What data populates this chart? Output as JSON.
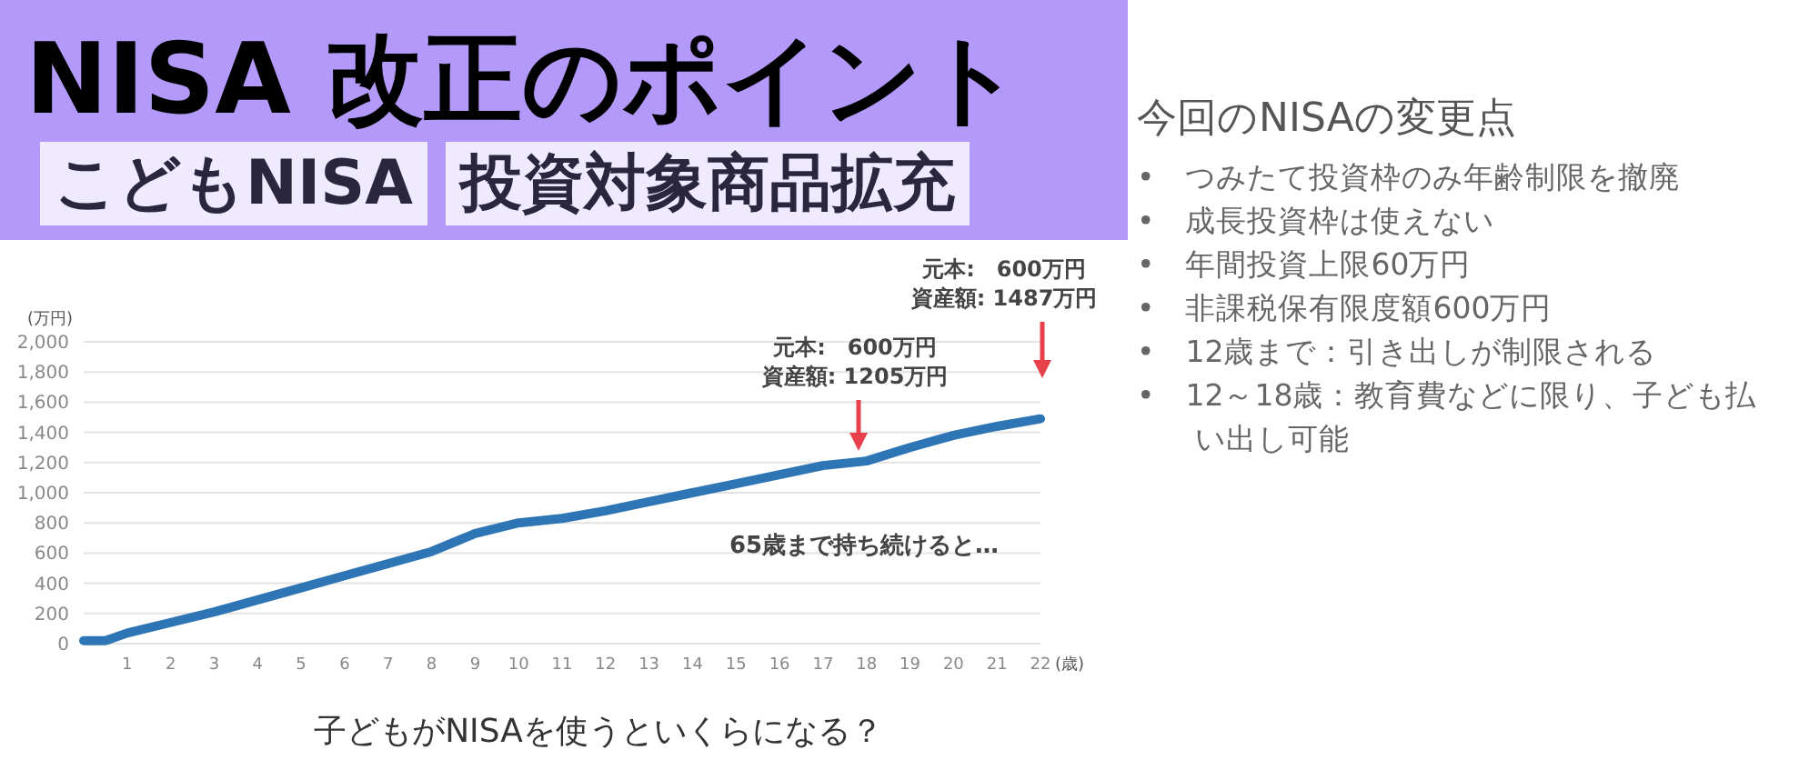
{
  "chart_data": [
    {
      "type": "other",
      "title": "NISA 改正のポイント",
      "annotations": [
        "こどもNISA",
        "投資対象商品拡充"
      ]
    },
    {
      "type": "line",
      "title": "子どもがNISAを使うといくらになる？",
      "xlabel": "(歳)",
      "ylabel": "(万円)",
      "x": [
        0,
        0.5,
        1,
        2,
        3,
        4,
        5,
        6,
        7,
        8,
        9,
        10,
        11,
        12,
        13,
        14,
        15,
        16,
        17,
        18,
        19,
        20,
        21,
        22
      ],
      "series": [
        {
          "color": "#2e75b6",
          "values": [
            20,
            20,
            70,
            140,
            210,
            290,
            370,
            450,
            530,
            610,
            730,
            800,
            830,
            880,
            940,
            1000,
            1060,
            1120,
            1180,
            1210,
            1300,
            1380,
            1440,
            1490
          ]
        }
      ],
      "xlim": [
        0,
        22
      ],
      "xticks": [
        1,
        2,
        3,
        4,
        5,
        6,
        7,
        8,
        9,
        10,
        11,
        12,
        13,
        14,
        15,
        16,
        17,
        18,
        19,
        20,
        21,
        22
      ],
      "ylim": [
        0,
        2000
      ],
      "yticks": [
        {
          "value": 0,
          "label": "0"
        },
        {
          "value": 200,
          "label": "200"
        },
        {
          "value": 400,
          "label": "400"
        },
        {
          "value": 600,
          "label": "600"
        },
        {
          "value": 800,
          "label": "800"
        },
        {
          "value": 1000,
          "label": "1,000"
        },
        {
          "value": 1200,
          "label": "1,200"
        },
        {
          "value": 1400,
          "label": "1,400"
        },
        {
          "value": 1600,
          "label": "1,600"
        },
        {
          "value": 1800,
          "label": "1,800"
        },
        {
          "value": 2000,
          "label": "2,000"
        }
      ],
      "grid": "y",
      "marker": "none",
      "line_style": "solid",
      "annotations": [
        "元本:　600万円",
        "資産額: 1205万円",
        "元本:　600万円",
        "資産額: 1487万円",
        "65歳まで持ち続けると…"
      ]
    },
    {
      "type": "other",
      "title": "今回のNISAの変更点",
      "annotations": [
        "•　つみたて投資枠のみ年齢制限を撤廃",
        "•　成長投資枠は使えない",
        "•　年間投資上限60万円",
        "•　非課税保有限度額600万円",
        "•　12歳まで：引き出しが制限される",
        "•　12～18歳：教育費などに限り、子ども払い出し可能"
      ]
    }
  ]
}
